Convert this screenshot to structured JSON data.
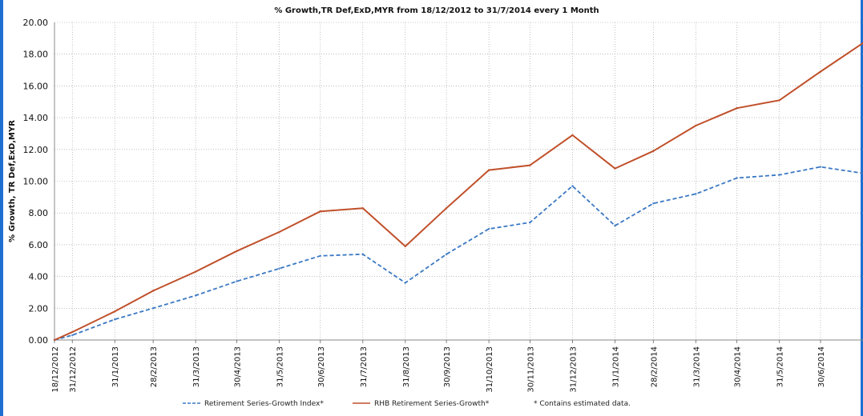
{
  "chart_data": {
    "type": "line",
    "title": "% Growth,TR Def,ExD,MYR from 18/12/2012 to 31/7/2014 every 1 Month",
    "ylabel": "% Growth, TR Def,ExD,MYR",
    "xlabel": "",
    "ylim": [
      0,
      20
    ],
    "yticks": [
      "0.00",
      "2.00",
      "4.00",
      "6.00",
      "8.00",
      "10.00",
      "12.00",
      "14.00",
      "16.00",
      "18.00",
      "20.00"
    ],
    "x": [
      "18/12/2012",
      "31/12/2012",
      "31/1/2013",
      "28/2/2013",
      "31/3/2013",
      "30/4/2013",
      "31/5/2013",
      "30/6/2013",
      "31/7/2013",
      "31/8/2013",
      "30/9/2013",
      "31/10/2013",
      "30/11/2013",
      "31/12/2013",
      "31/1/2014",
      "28/2/2014",
      "31/3/2014",
      "30/4/2014",
      "31/5/2014",
      "30/6/2014",
      "31/7/2014"
    ],
    "xtick_labels": [
      "18/12/2012",
      "31/12/2012",
      "31/1/2013",
      "28/2/2013",
      "31/3/2013",
      "30/4/2013",
      "31/5/2013",
      "30/6/2013",
      "31/7/2013",
      "31/8/2013",
      "30/9/2013",
      "31/10/2013",
      "30/11/2013",
      "31/12/2013",
      "31/1/2014",
      "28/2/2014",
      "31/3/2014",
      "30/4/2014",
      "31/5/2014",
      "30/6/2014"
    ],
    "series": [
      {
        "name": "Retirement Series-Growth Index*",
        "color": "#3a78c3",
        "style": "dashed",
        "values": [
          0.0,
          0.3,
          1.3,
          2.0,
          2.8,
          3.7,
          4.5,
          5.3,
          5.4,
          3.6,
          5.4,
          7.0,
          7.4,
          9.7,
          7.2,
          8.6,
          9.2,
          10.2,
          10.4,
          10.9,
          10.5
        ]
      },
      {
        "name": "RHB Retirement Series-Growth*",
        "color": "#c0502a",
        "style": "solid",
        "values": [
          0.0,
          0.5,
          1.8,
          3.1,
          4.3,
          5.6,
          6.8,
          8.1,
          8.3,
          5.9,
          8.3,
          10.7,
          11.0,
          12.9,
          10.8,
          11.9,
          13.5,
          14.6,
          15.1,
          16.9,
          18.7
        ]
      }
    ],
    "grid": true,
    "legend_position": "bottom",
    "note": "* Contains estimated data."
  }
}
